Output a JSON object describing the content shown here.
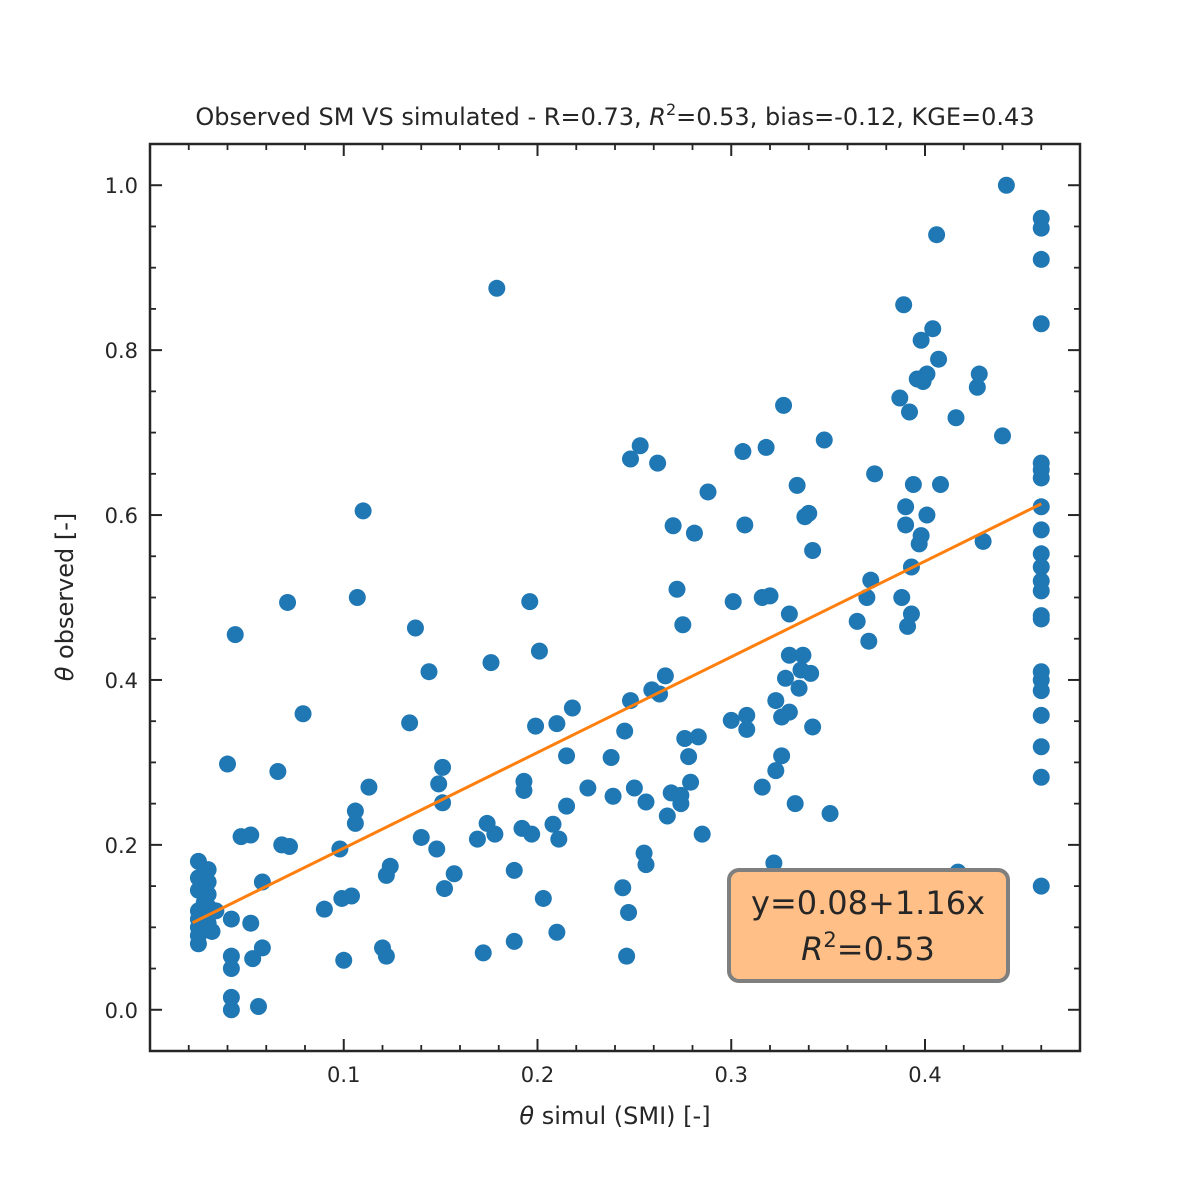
{
  "chart_data": {
    "type": "scatter",
    "title_parts": {
      "prefix": "Observed SM VS simulated - R=0.73, ",
      "r2_symbol": "R",
      "r2_exp": "2",
      "suffix": "=0.53, bias=-0.12, KGE=0.43"
    },
    "xlabel_symbol": "θ",
    "xlabel_text": " simul (SMI) [-]",
    "ylabel_symbol": "θ",
    "ylabel_text": " observed [-]",
    "xlim": [
      0.0,
      0.48
    ],
    "ylim": [
      -0.05,
      1.05
    ],
    "xticks": [
      0.1,
      0.2,
      0.3,
      0.4
    ],
    "xtick_labels": [
      "0.1",
      "0.2",
      "0.3",
      "0.4"
    ],
    "xminor": [
      0.02,
      0.04,
      0.06,
      0.08,
      0.12,
      0.14,
      0.16,
      0.18,
      0.22,
      0.24,
      0.26,
      0.28,
      0.32,
      0.34,
      0.36,
      0.38,
      0.42,
      0.44,
      0.46
    ],
    "yticks": [
      0.0,
      0.2,
      0.4,
      0.6,
      0.8,
      1.0
    ],
    "ytick_labels": [
      "0.0",
      "0.2",
      "0.4",
      "0.6",
      "0.8",
      "1.0"
    ],
    "yminor": [
      0.05,
      0.1,
      0.15,
      0.25,
      0.3,
      0.35,
      0.45,
      0.5,
      0.55,
      0.65,
      0.7,
      0.75,
      0.85,
      0.9,
      0.95
    ],
    "series": [
      {
        "name": "observations",
        "color": "#1f77b4",
        "points": [
          [
            0.025,
            0.18
          ],
          [
            0.025,
            0.16
          ],
          [
            0.025,
            0.145
          ],
          [
            0.025,
            0.12
          ],
          [
            0.025,
            0.11
          ],
          [
            0.025,
            0.1
          ],
          [
            0.025,
            0.09
          ],
          [
            0.025,
            0.08
          ],
          [
            0.028,
            0.13
          ],
          [
            0.028,
            0.1
          ],
          [
            0.03,
            0.17
          ],
          [
            0.03,
            0.155
          ],
          [
            0.03,
            0.14
          ],
          [
            0.03,
            0.125
          ],
          [
            0.03,
            0.115
          ],
          [
            0.03,
            0.105
          ],
          [
            0.032,
            0.095
          ],
          [
            0.034,
            0.12
          ],
          [
            0.04,
            0.298
          ],
          [
            0.042,
            0.11
          ],
          [
            0.044,
            0.455
          ],
          [
            0.042,
            0.065
          ],
          [
            0.042,
            0.05
          ],
          [
            0.042,
            0.015
          ],
          [
            0.042,
            0.0
          ],
          [
            0.047,
            0.21
          ],
          [
            0.052,
            0.212
          ],
          [
            0.052,
            0.105
          ],
          [
            0.053,
            0.062
          ],
          [
            0.056,
            0.004
          ],
          [
            0.058,
            0.075
          ],
          [
            0.058,
            0.155
          ],
          [
            0.066,
            0.289
          ],
          [
            0.068,
            0.2
          ],
          [
            0.071,
            0.494
          ],
          [
            0.072,
            0.198
          ],
          [
            0.079,
            0.359
          ],
          [
            0.09,
            0.122
          ],
          [
            0.098,
            0.195
          ],
          [
            0.099,
            0.135
          ],
          [
            0.1,
            0.06
          ],
          [
            0.104,
            0.138
          ],
          [
            0.106,
            0.226
          ],
          [
            0.106,
            0.241
          ],
          [
            0.107,
            0.5
          ],
          [
            0.11,
            0.605
          ],
          [
            0.113,
            0.27
          ],
          [
            0.12,
            0.075
          ],
          [
            0.122,
            0.065
          ],
          [
            0.122,
            0.163
          ],
          [
            0.124,
            0.174
          ],
          [
            0.134,
            0.348
          ],
          [
            0.137,
            0.463
          ],
          [
            0.14,
            0.209
          ],
          [
            0.144,
            0.41
          ],
          [
            0.148,
            0.195
          ],
          [
            0.149,
            0.274
          ],
          [
            0.151,
            0.294
          ],
          [
            0.151,
            0.251
          ],
          [
            0.152,
            0.147
          ],
          [
            0.157,
            0.165
          ],
          [
            0.169,
            0.207
          ],
          [
            0.172,
            0.069
          ],
          [
            0.174,
            0.226
          ],
          [
            0.176,
            0.421
          ],
          [
            0.178,
            0.213
          ],
          [
            0.179,
            0.875
          ],
          [
            0.188,
            0.083
          ],
          [
            0.188,
            0.169
          ],
          [
            0.192,
            0.22
          ],
          [
            0.193,
            0.277
          ],
          [
            0.193,
            0.266
          ],
          [
            0.196,
            0.495
          ],
          [
            0.197,
            0.213
          ],
          [
            0.199,
            0.344
          ],
          [
            0.201,
            0.435
          ],
          [
            0.203,
            0.135
          ],
          [
            0.208,
            0.225
          ],
          [
            0.21,
            0.347
          ],
          [
            0.21,
            0.094
          ],
          [
            0.211,
            0.207
          ],
          [
            0.215,
            0.247
          ],
          [
            0.215,
            0.308
          ],
          [
            0.218,
            0.366
          ],
          [
            0.226,
            0.269
          ],
          [
            0.238,
            0.306
          ],
          [
            0.239,
            0.259
          ],
          [
            0.244,
            0.148
          ],
          [
            0.245,
            0.338
          ],
          [
            0.246,
            0.065
          ],
          [
            0.247,
            0.118
          ],
          [
            0.248,
            0.375
          ],
          [
            0.248,
            0.668
          ],
          [
            0.25,
            0.269
          ],
          [
            0.253,
            0.684
          ],
          [
            0.255,
            0.19
          ],
          [
            0.256,
            0.252
          ],
          [
            0.256,
            0.176
          ],
          [
            0.259,
            0.388
          ],
          [
            0.262,
            0.663
          ],
          [
            0.263,
            0.383
          ],
          [
            0.266,
            0.405
          ],
          [
            0.267,
            0.235
          ],
          [
            0.269,
            0.263
          ],
          [
            0.27,
            0.587
          ],
          [
            0.272,
            0.51
          ],
          [
            0.274,
            0.26
          ],
          [
            0.274,
            0.25
          ],
          [
            0.275,
            0.467
          ],
          [
            0.276,
            0.329
          ],
          [
            0.278,
            0.307
          ],
          [
            0.279,
            0.276
          ],
          [
            0.281,
            0.578
          ],
          [
            0.283,
            0.331
          ],
          [
            0.285,
            0.213
          ],
          [
            0.288,
            0.628
          ],
          [
            0.3,
            0.351
          ],
          [
            0.301,
            0.495
          ],
          [
            0.306,
            0.677
          ],
          [
            0.307,
            0.588
          ],
          [
            0.308,
            0.357
          ],
          [
            0.308,
            0.34
          ],
          [
            0.316,
            0.5
          ],
          [
            0.316,
            0.27
          ],
          [
            0.318,
            0.682
          ],
          [
            0.32,
            0.502
          ],
          [
            0.322,
            0.178
          ],
          [
            0.323,
            0.375
          ],
          [
            0.323,
            0.29
          ],
          [
            0.326,
            0.355
          ],
          [
            0.326,
            0.308
          ],
          [
            0.327,
            0.733
          ],
          [
            0.328,
            0.402
          ],
          [
            0.33,
            0.43
          ],
          [
            0.33,
            0.361
          ],
          [
            0.33,
            0.48
          ],
          [
            0.333,
            0.25
          ],
          [
            0.334,
            0.636
          ],
          [
            0.335,
            0.39
          ],
          [
            0.336,
            0.412
          ],
          [
            0.337,
            0.43
          ],
          [
            0.338,
            0.598
          ],
          [
            0.34,
            0.602
          ],
          [
            0.341,
            0.408
          ],
          [
            0.342,
            0.557
          ],
          [
            0.342,
            0.343
          ],
          [
            0.348,
            0.691
          ],
          [
            0.351,
            0.238
          ],
          [
            0.365,
            0.471
          ],
          [
            0.37,
            0.5
          ],
          [
            0.371,
            0.447
          ],
          [
            0.372,
            0.521
          ],
          [
            0.374,
            0.65
          ],
          [
            0.387,
            0.742
          ],
          [
            0.388,
            0.5
          ],
          [
            0.389,
            0.855
          ],
          [
            0.39,
            0.61
          ],
          [
            0.39,
            0.588
          ],
          [
            0.391,
            0.465
          ],
          [
            0.392,
            0.725
          ],
          [
            0.393,
            0.48
          ],
          [
            0.393,
            0.537
          ],
          [
            0.394,
            0.637
          ],
          [
            0.396,
            0.765
          ],
          [
            0.397,
            0.565
          ],
          [
            0.398,
            0.575
          ],
          [
            0.398,
            0.812
          ],
          [
            0.399,
            0.762
          ],
          [
            0.401,
            0.6
          ],
          [
            0.401,
            0.771
          ],
          [
            0.404,
            0.826
          ],
          [
            0.406,
            0.94
          ],
          [
            0.407,
            0.789
          ],
          [
            0.408,
            0.637
          ],
          [
            0.416,
            0.718
          ],
          [
            0.417,
            0.167
          ],
          [
            0.427,
            0.755
          ],
          [
            0.428,
            0.771
          ],
          [
            0.43,
            0.568
          ],
          [
            0.44,
            0.696
          ],
          [
            0.442,
            1.0
          ],
          [
            0.46,
            0.96
          ],
          [
            0.46,
            0.948
          ],
          [
            0.46,
            0.91
          ],
          [
            0.46,
            0.832
          ],
          [
            0.46,
            0.663
          ],
          [
            0.46,
            0.655
          ],
          [
            0.46,
            0.645
          ],
          [
            0.46,
            0.61
          ],
          [
            0.46,
            0.582
          ],
          [
            0.46,
            0.553
          ],
          [
            0.46,
            0.537
          ],
          [
            0.46,
            0.52
          ],
          [
            0.46,
            0.508
          ],
          [
            0.46,
            0.478
          ],
          [
            0.46,
            0.474
          ],
          [
            0.46,
            0.41
          ],
          [
            0.46,
            0.4
          ],
          [
            0.46,
            0.387
          ],
          [
            0.46,
            0.357
          ],
          [
            0.46,
            0.319
          ],
          [
            0.46,
            0.282
          ],
          [
            0.46,
            0.15
          ]
        ]
      }
    ],
    "fit": {
      "name": "regression",
      "color": "#ff7f0e",
      "intercept": 0.08,
      "slope": 1.16,
      "x_range": [
        0.022,
        0.46
      ]
    },
    "annotation": {
      "equation": "y=0.08+1.16x",
      "r2_symbol": "R",
      "r2_exp": "2",
      "r2_value": "=0.53",
      "facecolor": "#ffbf87",
      "edgecolor": "#7f7f7f",
      "placement": "lower-right"
    }
  }
}
